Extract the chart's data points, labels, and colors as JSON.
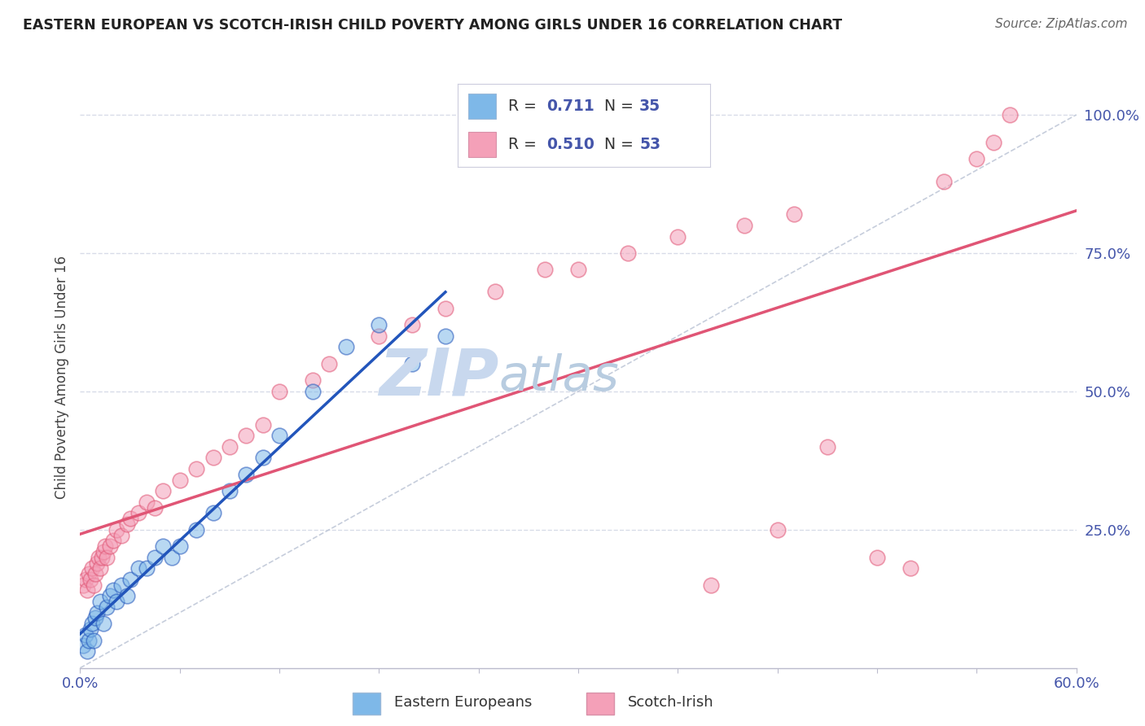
{
  "title": "EASTERN EUROPEAN VS SCOTCH-IRISH CHILD POVERTY AMONG GIRLS UNDER 16 CORRELATION CHART",
  "source": "Source: ZipAtlas.com",
  "ylabel": "Child Poverty Among Girls Under 16",
  "xlim": [
    0.0,
    0.6
  ],
  "ylim": [
    0.0,
    1.05
  ],
  "blue_R": 0.711,
  "blue_N": 35,
  "pink_R": 0.51,
  "pink_N": 53,
  "blue_color": "#7eb8e8",
  "pink_color": "#f4a0b8",
  "blue_line_color": "#2255bb",
  "pink_line_color": "#e05575",
  "ref_line_color": "#c0c8d8",
  "watermark_zip_color": "#c8d8ee",
  "watermark_atlas_color": "#b8cce0",
  "background_color": "#ffffff",
  "grid_color": "#d8dce8",
  "tick_color": "#4455aa",
  "title_color": "#222222",
  "source_color": "#666666",
  "blue_x": [
    0.002,
    0.003,
    0.004,
    0.005,
    0.006,
    0.007,
    0.008,
    0.009,
    0.01,
    0.012,
    0.014,
    0.016,
    0.018,
    0.02,
    0.022,
    0.025,
    0.028,
    0.03,
    0.035,
    0.04,
    0.045,
    0.05,
    0.055,
    0.06,
    0.07,
    0.08,
    0.09,
    0.1,
    0.11,
    0.12,
    0.14,
    0.16,
    0.18,
    0.2,
    0.22
  ],
  "blue_y": [
    0.04,
    0.06,
    0.03,
    0.05,
    0.07,
    0.08,
    0.05,
    0.09,
    0.1,
    0.12,
    0.08,
    0.11,
    0.13,
    0.14,
    0.12,
    0.15,
    0.13,
    0.16,
    0.18,
    0.18,
    0.2,
    0.22,
    0.2,
    0.22,
    0.25,
    0.28,
    0.32,
    0.35,
    0.38,
    0.42,
    0.5,
    0.58,
    0.62,
    0.55,
    0.6
  ],
  "pink_x": [
    0.002,
    0.003,
    0.004,
    0.005,
    0.006,
    0.007,
    0.008,
    0.009,
    0.01,
    0.011,
    0.012,
    0.013,
    0.014,
    0.015,
    0.016,
    0.018,
    0.02,
    0.022,
    0.025,
    0.028,
    0.03,
    0.035,
    0.04,
    0.045,
    0.05,
    0.06,
    0.07,
    0.08,
    0.09,
    0.1,
    0.11,
    0.12,
    0.14,
    0.15,
    0.18,
    0.2,
    0.22,
    0.25,
    0.28,
    0.3,
    0.33,
    0.36,
    0.4,
    0.43,
    0.45,
    0.48,
    0.5,
    0.52,
    0.54,
    0.42,
    0.38,
    0.55,
    0.56
  ],
  "pink_y": [
    0.15,
    0.16,
    0.14,
    0.17,
    0.16,
    0.18,
    0.15,
    0.17,
    0.19,
    0.2,
    0.18,
    0.2,
    0.21,
    0.22,
    0.2,
    0.22,
    0.23,
    0.25,
    0.24,
    0.26,
    0.27,
    0.28,
    0.3,
    0.29,
    0.32,
    0.34,
    0.36,
    0.38,
    0.4,
    0.42,
    0.44,
    0.5,
    0.52,
    0.55,
    0.6,
    0.62,
    0.65,
    0.68,
    0.72,
    0.72,
    0.75,
    0.78,
    0.8,
    0.82,
    0.4,
    0.2,
    0.18,
    0.88,
    0.92,
    0.25,
    0.15,
    0.95,
    1.0
  ]
}
